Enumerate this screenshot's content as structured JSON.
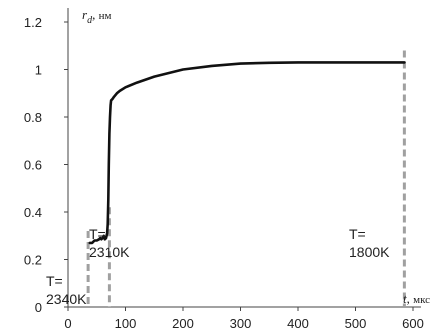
{
  "chart_data": {
    "type": "line",
    "xlim": [
      0,
      600
    ],
    "ylim": [
      0,
      1.2
    ],
    "x_ticks": [
      "0",
      "100",
      "200",
      "300",
      "400",
      "500",
      "600"
    ],
    "y_ticks": [
      "0",
      "0.2",
      "0.4",
      "0.6",
      "0.8",
      "1",
      "1.2"
    ],
    "xlabel": {
      "symbol": "t",
      "unit": "мкс"
    },
    "ylabel": {
      "symbol": "r",
      "sub": "d",
      "unit": "нм"
    },
    "grid": false,
    "series": [
      {
        "x": [
          38,
          42,
          46,
          50,
          54,
          56,
          58,
          60,
          62,
          64,
          66,
          68,
          69,
          70,
          71,
          72,
          73,
          74,
          75,
          77,
          80,
          85,
          90,
          100,
          120,
          150,
          200,
          250,
          300,
          350,
          400,
          450,
          500,
          550,
          585
        ],
        "y": [
          0.27,
          0.27,
          0.28,
          0.28,
          0.285,
          0.29,
          0.285,
          0.29,
          0.3,
          0.285,
          0.29,
          0.31,
          0.35,
          0.45,
          0.6,
          0.73,
          0.8,
          0.85,
          0.87,
          0.875,
          0.885,
          0.9,
          0.91,
          0.925,
          0.945,
          0.97,
          1.0,
          1.015,
          1.025,
          1.028,
          1.03,
          1.03,
          1.03,
          1.03,
          1.03
        ]
      }
    ],
    "markers": [
      {
        "x": 35,
        "y_top": 0.32,
        "label_line1": "T=",
        "label_line2": "2340K"
      },
      {
        "x": 72,
        "y_top": 0.42,
        "label_line1": "T=",
        "label_line2": "2310K"
      },
      {
        "x": 585,
        "y_top": 1.08,
        "label_line1": "T=",
        "label_line2": "1800K"
      }
    ]
  }
}
